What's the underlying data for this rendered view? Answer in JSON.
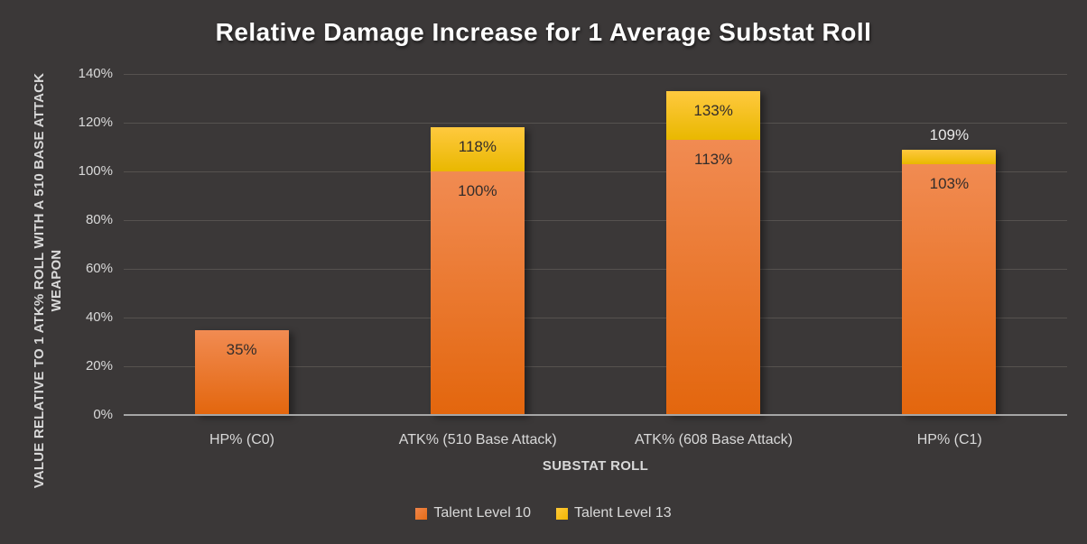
{
  "chart_data": {
    "type": "bar",
    "stacked": true,
    "title": "Relative Damage Increase for 1 Average Substat Roll",
    "xlabel": "SUBSTAT ROLL",
    "ylabel": "VALUE RELATIVE TO 1 ATK% ROLL WITH A 510 BASE ATTACK WEAPON",
    "ylabel_line1": "VALUE RELATIVE TO 1 ATK% ROLL WITH A 510 BASE ATTACK",
    "ylabel_line2": "WEAPON",
    "categories": [
      "HP% (C0)",
      "ATK% (510 Base Attack)",
      "ATK% (608 Base Attack)",
      "HP% (C1)"
    ],
    "series": [
      {
        "name": "Talent Level 10",
        "values": [
          35,
          100,
          113,
          103
        ],
        "legend_color": "#ed7d31"
      },
      {
        "name": "Talent Level 13",
        "values": [
          35,
          118,
          133,
          109
        ],
        "legend_color": "#ffc000"
      }
    ],
    "series_note": "Talent Level 13 values are stacked totals; yellow segment height = level13 minus level10",
    "data_labels": [
      [
        "35%",
        null
      ],
      [
        "100%",
        "118%"
      ],
      [
        "113%",
        "133%"
      ],
      [
        "103%",
        "109%"
      ]
    ],
    "ylim": [
      0,
      140
    ],
    "ytick_step": 20,
    "ytick_suffix": "%",
    "grid": true,
    "legend_position": "bottom"
  },
  "colors": {
    "background": "#3b3838",
    "gridline": "#56524f",
    "axis_line": "#a6a6a6",
    "text_light": "#d9d9d9",
    "title_text": "#ffffff",
    "label_dark": "#332d2b",
    "orange_top": "#f18b52",
    "orange_bottom": "#e3660d",
    "yellow_top": "#ffc93f",
    "yellow_bottom": "#e9b800"
  }
}
